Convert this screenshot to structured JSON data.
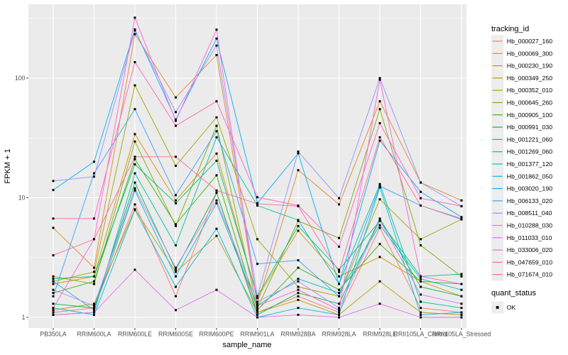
{
  "figure": {
    "bg": "#FFFFFF",
    "panel_bg": "#EBEBEB",
    "grid_color": "#FFFFFF",
    "tick_mark_color": "#333333",
    "tick_label_color": "#4D4D4D",
    "axis_title_color": "#000000",
    "legend_key_bg": "#EDEDED",
    "point_color": "#000000"
  },
  "chart_data": {
    "type": "line",
    "title": "",
    "xlabel": "sample_name",
    "ylabel": "FPKM + 1",
    "y_scale": "log10",
    "y_ticks": [
      1,
      10,
      100
    ],
    "y_minor_ticks": [
      3.162,
      31.62,
      316.2
    ],
    "ylim": [
      0.82,
      420
    ],
    "grid": true,
    "legend_position": "right",
    "legend_color_title": "tracking_id",
    "legend_shape_title": "quant_status",
    "legend_shape_entries": [
      {
        "label": "OK",
        "shape": "filled-square",
        "color": "#000000"
      }
    ],
    "point_shape": "square",
    "categories": [
      "PB350LA",
      "RRIM600LA",
      "RRIM600LE",
      "RRIM600SE",
      "RRIM600PE",
      "RRIM901LA",
      "RRIM928BA",
      "RRIM928LA",
      "RRIM928LE",
      "RRII105LA_Control",
      "RRII105LA_Stressed"
    ],
    "series": [
      {
        "name": "Hb_000027_160",
        "color": "#F8766D",
        "values": [
          1.1,
          1.2,
          8.8,
          1.5,
          11,
          1.1,
          1.5,
          1.1,
          5.6,
          1.2,
          1.1
        ]
      },
      {
        "name": "Hb_000069_300",
        "color": "#E88526",
        "values": [
          5.6,
          2.6,
          233,
          69,
          156,
          1.3,
          17,
          8.8,
          64,
          13.4,
          9.5
        ]
      },
      {
        "name": "Hb_000230_190",
        "color": "#D89000",
        "values": [
          1.9,
          2.2,
          34,
          9.5,
          23.4,
          1.45,
          5.3,
          2.2,
          3.2,
          2.0,
          1.5
        ]
      },
      {
        "name": "Hb_000349_250",
        "color": "#C09B00",
        "values": [
          1.15,
          1.3,
          8.0,
          2.4,
          4.8,
          1.1,
          1.4,
          1.05,
          2.0,
          1.1,
          1.05
        ]
      },
      {
        "name": "Hb_000352_010",
        "color": "#A3A500",
        "values": [
          2.0,
          2.4,
          87,
          18.5,
          47,
          4.5,
          1.8,
          1.5,
          9.7,
          4.5,
          6.6
        ]
      },
      {
        "name": "Hb_000645_260",
        "color": "#7CAE00",
        "values": [
          2.2,
          1.9,
          29.5,
          5.8,
          40,
          1.2,
          6.4,
          4.6,
          55,
          4.0,
          2.2
        ]
      },
      {
        "name": "Hb_000905_100",
        "color": "#39B600",
        "values": [
          1.6,
          2.0,
          21,
          6.0,
          15.4,
          1.15,
          2.6,
          1.7,
          4.1,
          2.0,
          1.9
        ]
      },
      {
        "name": "Hb_000991_030",
        "color": "#00BB4E",
        "values": [
          1.3,
          1.2,
          13.4,
          2.5,
          11,
          1.05,
          1.6,
          1.3,
          6.7,
          1.8,
          1.5
        ]
      },
      {
        "name": "Hb_001221_060",
        "color": "#00BF7D",
        "values": [
          2.1,
          2.2,
          19,
          9.0,
          20.4,
          1.5,
          5.8,
          2.5,
          6.4,
          2.2,
          2.3
        ]
      },
      {
        "name": "Hb_001269_060",
        "color": "#00C1A3",
        "values": [
          1.05,
          1.1,
          16,
          4.0,
          32,
          8.6,
          6.5,
          1.9,
          13,
          1.35,
          1.2
        ]
      },
      {
        "name": "Hb_001377_120",
        "color": "#00BFC4",
        "values": [
          2.0,
          1.15,
          11.5,
          2.2,
          9.0,
          1.25,
          2.1,
          1.6,
          5.9,
          2.1,
          1.7
        ]
      },
      {
        "name": "Hb_001862_050",
        "color": "#00BAE0",
        "values": [
          1.2,
          1.05,
          7.9,
          1.8,
          5.5,
          1.0,
          1.2,
          1.05,
          12.2,
          1.05,
          1.1
        ]
      },
      {
        "name": "Hb_003020_190",
        "color": "#00B0F6",
        "values": [
          11.6,
          20,
          255,
          45,
          214,
          9.0,
          23.5,
          1.9,
          30,
          11.2,
          6.9
        ]
      },
      {
        "name": "Hb_006133_020",
        "color": "#35A2FF",
        "values": [
          1.5,
          16,
          55,
          10.5,
          36,
          2.8,
          3.0,
          1.5,
          12.5,
          8.6,
          6.6
        ]
      },
      {
        "name": "Hb_008511_040",
        "color": "#9590FF",
        "values": [
          13.8,
          15,
          250,
          52,
          187,
          1.5,
          24.3,
          9.9,
          100,
          13.4,
          8.5
        ]
      },
      {
        "name": "Hb_010288_030",
        "color": "#C77CFF",
        "values": [
          1.7,
          1.25,
          12,
          2.6,
          9.5,
          1.35,
          2.0,
          1.2,
          6.5,
          1.55,
          1.3
        ]
      },
      {
        "name": "Hb_011033_010",
        "color": "#E76BF3",
        "values": [
          1.05,
          1.1,
          2.5,
          1.15,
          1.7,
          1.0,
          1.05,
          1.0,
          1.3,
          1.0,
          1.0
        ]
      },
      {
        "name": "Hb_033006_020",
        "color": "#FA62DB",
        "values": [
          1.2,
          4.5,
          320,
          44,
          254,
          1.25,
          1.7,
          1.15,
          97,
          2.2,
          1.9
        ]
      },
      {
        "name": "Hb_047659_010",
        "color": "#FF62BC",
        "values": [
          6.7,
          6.7,
          136,
          40,
          64,
          10.1,
          8.6,
          3.9,
          42,
          9.9,
          8.5
        ]
      },
      {
        "name": "Hb_071674_010",
        "color": "#FF6A98",
        "values": [
          3.3,
          4.5,
          22,
          22,
          11.5,
          8.9,
          8.5,
          2.4,
          32,
          8.6,
          6.7
        ]
      }
    ]
  }
}
